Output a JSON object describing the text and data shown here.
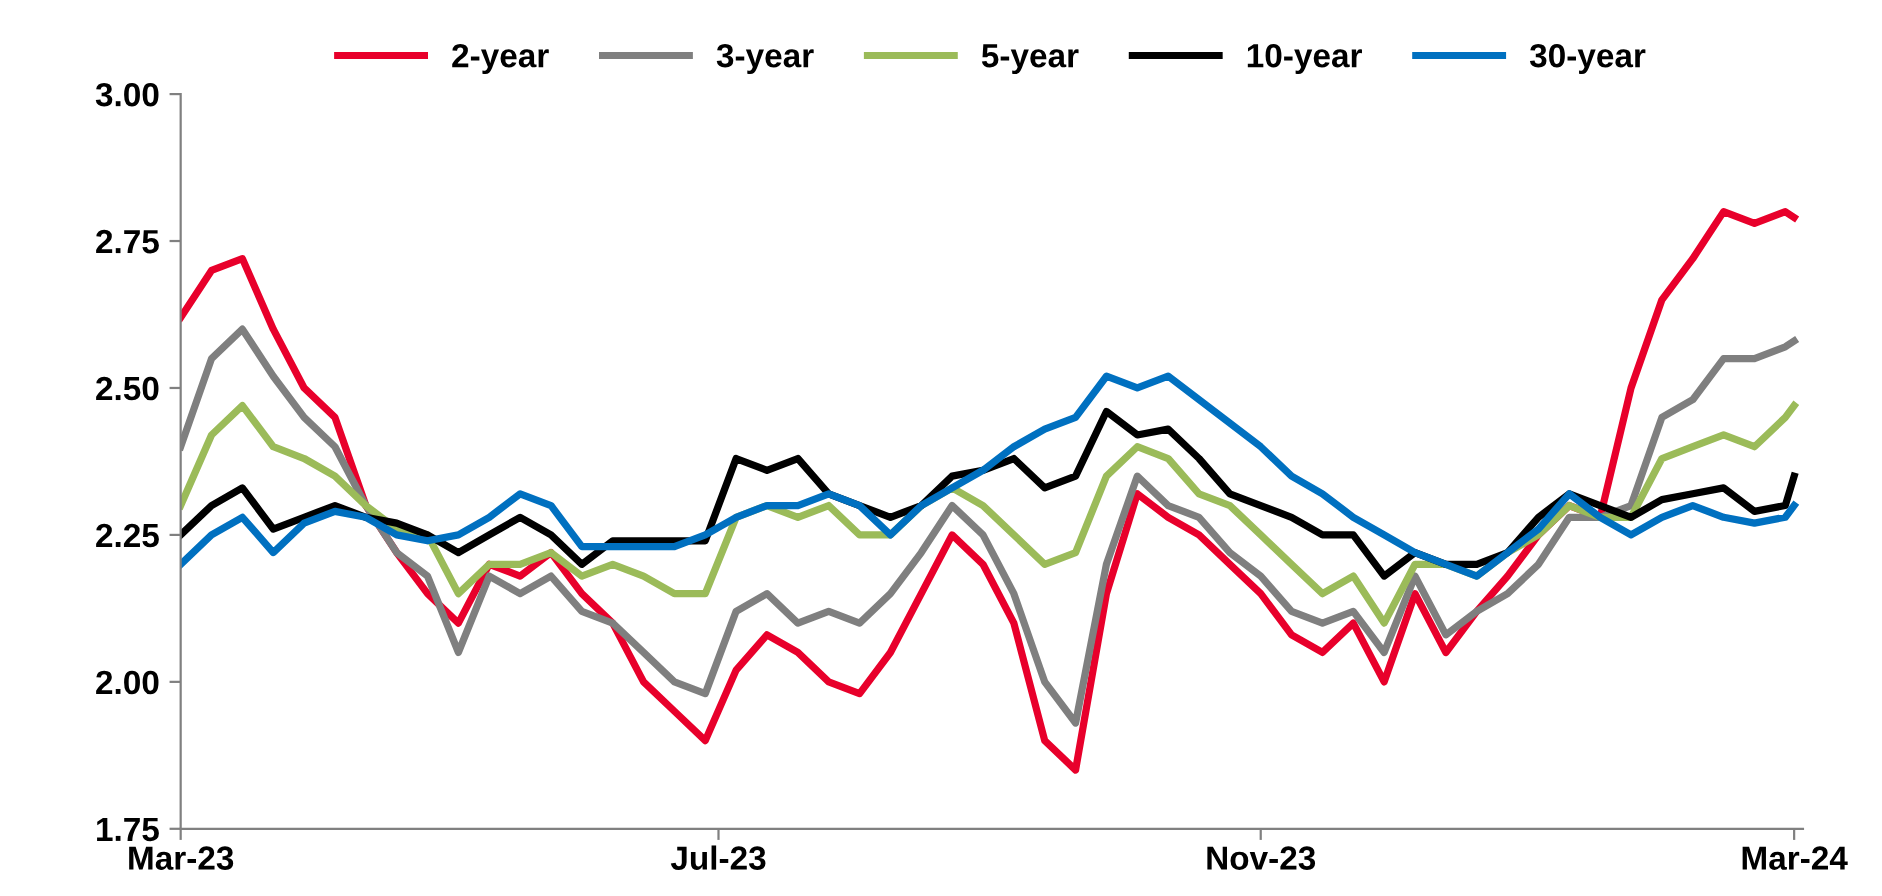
{
  "chart_data": {
    "type": "line",
    "x": [
      "2023-03-01",
      "2023-03-08",
      "2023-03-15",
      "2023-03-22",
      "2023-03-29",
      "2023-04-05",
      "2023-04-12",
      "2023-04-19",
      "2023-04-26",
      "2023-05-03",
      "2023-05-10",
      "2023-05-17",
      "2023-05-24",
      "2023-05-31",
      "2023-06-07",
      "2023-06-14",
      "2023-06-21",
      "2023-06-28",
      "2023-07-05",
      "2023-07-12",
      "2023-07-19",
      "2023-07-26",
      "2023-08-02",
      "2023-08-09",
      "2023-08-16",
      "2023-08-23",
      "2023-08-30",
      "2023-09-06",
      "2023-09-13",
      "2023-09-20",
      "2023-09-27",
      "2023-10-04",
      "2023-10-11",
      "2023-10-18",
      "2023-10-25",
      "2023-11-01",
      "2023-11-08",
      "2023-11-15",
      "2023-11-22",
      "2023-11-29",
      "2023-12-06",
      "2023-12-13",
      "2023-12-20",
      "2023-12-27",
      "2024-01-03",
      "2024-01-10",
      "2024-01-17",
      "2024-01-24",
      "2024-01-31",
      "2024-02-07",
      "2024-02-14",
      "2024-02-21",
      "2024-02-28",
      "2024-03-01"
    ],
    "series": [
      {
        "name": "2-year",
        "color": "#e8002b",
        "values": [
          2.62,
          2.7,
          2.72,
          2.6,
          2.5,
          2.45,
          2.3,
          2.22,
          2.15,
          2.1,
          2.2,
          2.18,
          2.22,
          2.15,
          2.1,
          2.0,
          1.95,
          1.9,
          2.02,
          2.08,
          2.05,
          2.0,
          1.98,
          2.05,
          2.15,
          2.25,
          2.2,
          2.1,
          1.9,
          1.85,
          2.15,
          2.32,
          2.28,
          2.25,
          2.2,
          2.15,
          2.08,
          2.05,
          2.1,
          2.0,
          2.15,
          2.05,
          2.12,
          2.18,
          2.25,
          2.3,
          2.28,
          2.5,
          2.65,
          2.72,
          2.8,
          2.78,
          2.8,
          2.79
        ]
      },
      {
        "name": "3-year",
        "color": "#7f7f7f",
        "values": [
          2.4,
          2.55,
          2.6,
          2.52,
          2.45,
          2.4,
          2.3,
          2.22,
          2.18,
          2.05,
          2.18,
          2.15,
          2.18,
          2.12,
          2.1,
          2.05,
          2.0,
          1.98,
          2.12,
          2.15,
          2.1,
          2.12,
          2.1,
          2.15,
          2.22,
          2.3,
          2.25,
          2.15,
          2.0,
          1.93,
          2.2,
          2.35,
          2.3,
          2.28,
          2.22,
          2.18,
          2.12,
          2.1,
          2.12,
          2.05,
          2.18,
          2.08,
          2.12,
          2.15,
          2.2,
          2.28,
          2.28,
          2.3,
          2.45,
          2.48,
          2.55,
          2.55,
          2.57,
          2.58
        ]
      },
      {
        "name": "5-year",
        "color": "#9bbb59",
        "values": [
          2.3,
          2.42,
          2.47,
          2.4,
          2.38,
          2.35,
          2.3,
          2.26,
          2.25,
          2.15,
          2.2,
          2.2,
          2.22,
          2.18,
          2.2,
          2.18,
          2.15,
          2.15,
          2.28,
          2.3,
          2.28,
          2.3,
          2.25,
          2.25,
          2.3,
          2.33,
          2.3,
          2.25,
          2.2,
          2.22,
          2.35,
          2.4,
          2.38,
          2.32,
          2.3,
          2.25,
          2.2,
          2.15,
          2.18,
          2.1,
          2.2,
          2.2,
          2.18,
          2.22,
          2.25,
          2.3,
          2.28,
          2.28,
          2.38,
          2.4,
          2.42,
          2.4,
          2.45,
          2.47
        ]
      },
      {
        "name": "10-year",
        "color": "#000000",
        "values": [
          2.25,
          2.3,
          2.33,
          2.26,
          2.28,
          2.3,
          2.28,
          2.27,
          2.25,
          2.22,
          2.25,
          2.28,
          2.25,
          2.2,
          2.24,
          2.24,
          2.24,
          2.24,
          2.38,
          2.36,
          2.38,
          2.32,
          2.3,
          2.28,
          2.3,
          2.35,
          2.36,
          2.38,
          2.33,
          2.35,
          2.46,
          2.42,
          2.43,
          2.38,
          2.32,
          2.3,
          2.28,
          2.25,
          2.25,
          2.18,
          2.22,
          2.2,
          2.2,
          2.22,
          2.28,
          2.32,
          2.3,
          2.28,
          2.31,
          2.32,
          2.33,
          2.29,
          2.3,
          2.35
        ]
      },
      {
        "name": "30-year",
        "color": "#0070c0",
        "values": [
          2.2,
          2.25,
          2.28,
          2.22,
          2.27,
          2.29,
          2.28,
          2.25,
          2.24,
          2.25,
          2.28,
          2.32,
          2.3,
          2.23,
          2.23,
          2.23,
          2.23,
          2.25,
          2.28,
          2.3,
          2.3,
          2.32,
          2.3,
          2.25,
          2.3,
          2.33,
          2.36,
          2.4,
          2.43,
          2.45,
          2.52,
          2.5,
          2.52,
          2.48,
          2.44,
          2.4,
          2.35,
          2.32,
          2.28,
          2.25,
          2.22,
          2.2,
          2.18,
          2.22,
          2.26,
          2.32,
          2.28,
          2.25,
          2.28,
          2.3,
          2.28,
          2.27,
          2.28,
          2.3
        ]
      }
    ],
    "xlim": [
      "2023-03-01",
      "2024-03-03"
    ],
    "xticks": [
      {
        "value": "2023-03-01",
        "label": "Mar-23"
      },
      {
        "value": "2023-07-01",
        "label": "Jul-23"
      },
      {
        "value": "2023-11-01",
        "label": "Nov-23"
      },
      {
        "value": "2024-03-01",
        "label": "Mar-24"
      }
    ],
    "ylim": [
      1.75,
      3.0
    ],
    "yticks": [
      {
        "value": 1.75,
        "label": "1.75"
      },
      {
        "value": 2.0,
        "label": "2.00"
      },
      {
        "value": 2.25,
        "label": "2.25"
      },
      {
        "value": 2.5,
        "label": "2.50"
      },
      {
        "value": 2.75,
        "label": "2.75"
      },
      {
        "value": 3.0,
        "label": "3.00"
      }
    ],
    "grid": false,
    "legend": "top",
    "marker": "none",
    "line_style": "solid"
  }
}
